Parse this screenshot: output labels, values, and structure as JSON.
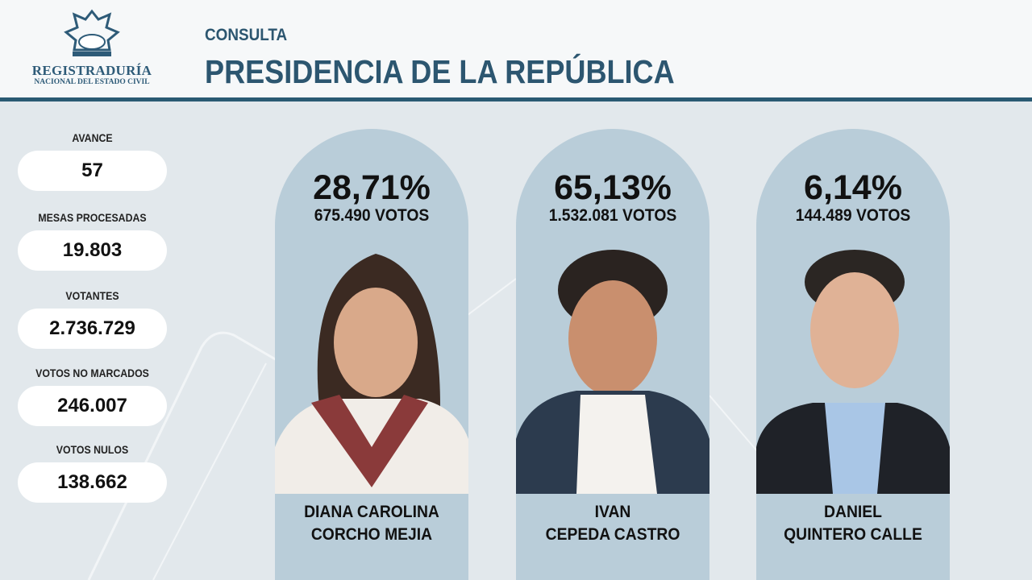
{
  "header": {
    "logo_line1": "REGISTRADURÍA",
    "logo_line2": "NACIONAL DEL ESTADO CIVIL",
    "subtitle": "CONSULTA",
    "title": "PRESIDENCIA DE LA REPÚBLICA"
  },
  "stats": [
    {
      "label": "AVANCE",
      "value": "57"
    },
    {
      "label": "MESAS PROCESADAS",
      "value": "19.803"
    },
    {
      "label": "VOTANTES",
      "value": "2.736.729"
    },
    {
      "label": "VOTOS NO MARCADOS",
      "value": "246.007"
    },
    {
      "label": "VOTOS NULOS",
      "value": "138.662"
    }
  ],
  "candidates": [
    {
      "percent": "28,71%",
      "votes": "675.490 VOTOS",
      "name1": "DIANA CAROLINA",
      "name2": "CORCHO MEJIA"
    },
    {
      "percent": "65,13%",
      "votes": "1.532.081 VOTOS",
      "name1": "IVAN",
      "name2": "CEPEDA CASTRO"
    },
    {
      "percent": "6,14%",
      "votes": "144.489 VOTOS",
      "name1": "DANIEL",
      "name2": "QUINTERO CALLE"
    }
  ],
  "colors": {
    "brand": "#2c5670",
    "card": "#b9cdd9",
    "background": "#e2e8ec"
  }
}
